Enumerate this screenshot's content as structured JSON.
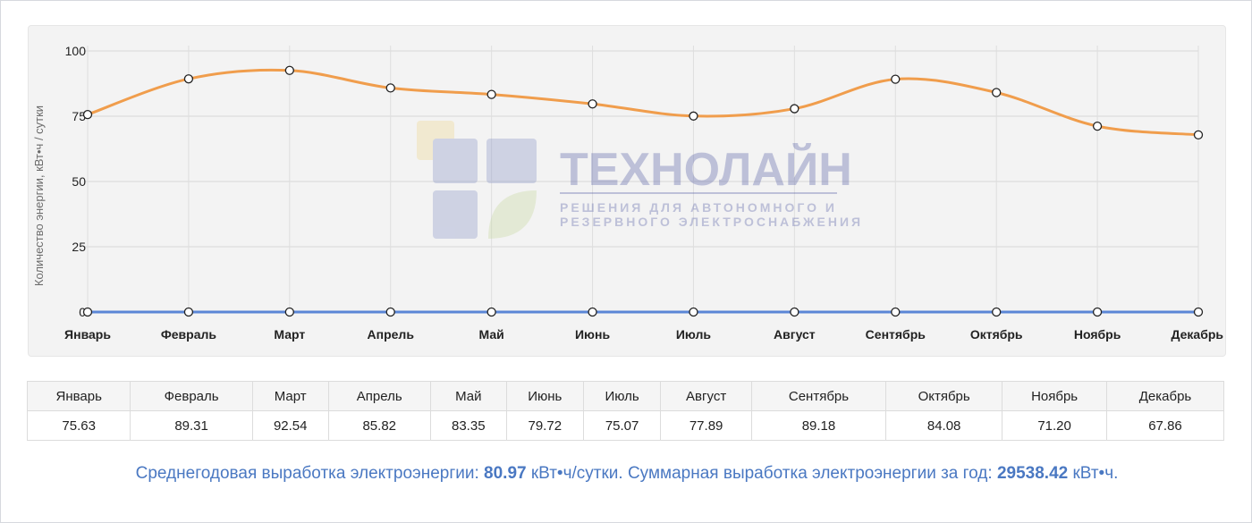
{
  "chart_data": {
    "type": "line",
    "categories": [
      "Январь",
      "Февраль",
      "Март",
      "Апрель",
      "Май",
      "Июнь",
      "Июль",
      "Август",
      "Сентябрь",
      "Октябрь",
      "Ноябрь",
      "Декабрь"
    ],
    "series": [
      {
        "values": [
          75.63,
          89.31,
          92.54,
          85.82,
          83.35,
          79.72,
          75.07,
          77.89,
          89.18,
          84.08,
          71.2,
          67.86
        ],
        "color": "#f09d4c"
      },
      {
        "values": [
          0,
          0,
          0,
          0,
          0,
          0,
          0,
          0,
          0,
          0,
          0,
          0
        ],
        "color": "#5a86d6"
      }
    ],
    "ylabel": "Количество энергии, кВт•ч / сутки",
    "yticks": [
      0,
      25,
      50,
      75,
      100
    ],
    "ylim": [
      0,
      100
    ],
    "grid": true,
    "legend": "none"
  },
  "watermark": {
    "brand": "ТЕХНОЛАЙН",
    "tagline_line1": "РЕШЕНИЯ ДЛЯ АВТОНОМНОГО И",
    "tagline_line2": "РЕЗЕРВНОГО ЭЛЕКТРОСНАБЖЕНИЯ"
  },
  "table": {
    "headers": [
      "Январь",
      "Февраль",
      "Март",
      "Апрель",
      "Май",
      "Июнь",
      "Июль",
      "Август",
      "Сентябрь",
      "Октябрь",
      "Ноябрь",
      "Декабрь"
    ],
    "values": [
      "75.63",
      "89.31",
      "92.54",
      "85.82",
      "83.35",
      "79.72",
      "75.07",
      "77.89",
      "89.18",
      "84.08",
      "71.20",
      "67.86"
    ]
  },
  "summary": {
    "avg_prefix": "Среднегодовая выработка электроэнергии: ",
    "avg_value": "80.97",
    "avg_unit": " кВт•ч/сутки. ",
    "total_prefix": "Суммарная выработка электроэнергии за год: ",
    "total_value": "29538.42",
    "total_unit": " кВт•ч."
  }
}
